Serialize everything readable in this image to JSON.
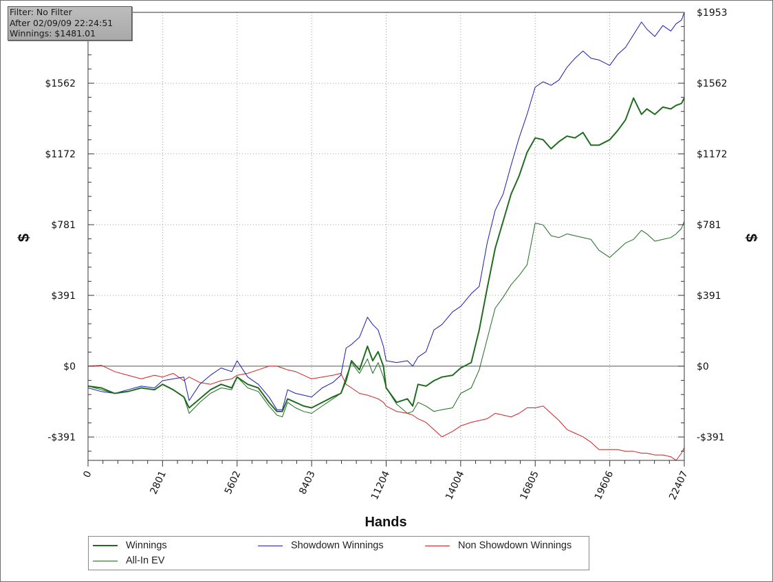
{
  "info": {
    "filter": "Filter: No Filter",
    "after": "After 02/09/09 22:24:51",
    "winnings": "Winnings: $1481.01"
  },
  "chart_data": {
    "type": "line",
    "xlabel": "Hands",
    "ylabel": "$",
    "xlim": [
      0,
      22407
    ],
    "ylim": [
      -520,
      1953
    ],
    "x_ticks": [
      "0",
      "2801",
      "5602",
      "8403",
      "11204",
      "14004",
      "16805",
      "19606",
      "22407"
    ],
    "y_ticks": [
      {
        "value": 1953,
        "label": "$1953"
      },
      {
        "value": 1562,
        "label": "$1562"
      },
      {
        "value": 1172,
        "label": "$1172"
      },
      {
        "value": 781,
        "label": "$781"
      },
      {
        "value": 391,
        "label": "$391"
      },
      {
        "value": 0,
        "label": "$0"
      },
      {
        "value": -391,
        "label": "-$391"
      }
    ],
    "grid": true,
    "legend_position": "bottom",
    "series": [
      {
        "name": "Winnings",
        "color": "#1f6b1f",
        "width": 2,
        "x": [
          0,
          500,
          1000,
          1500,
          2000,
          2500,
          2801,
          3200,
          3600,
          3800,
          4200,
          4600,
          5000,
          5400,
          5602,
          6000,
          6400,
          6800,
          7100,
          7300,
          7500,
          7800,
          8100,
          8403,
          8800,
          9200,
          9500,
          9700,
          9900,
          10200,
          10500,
          10700,
          10900,
          11100,
          11204,
          11600,
          12000,
          12200,
          12400,
          12700,
          13000,
          13300,
          13700,
          14004,
          14400,
          14700,
          15000,
          15300,
          15600,
          15900,
          16200,
          16500,
          16805,
          17100,
          17400,
          17700,
          18000,
          18300,
          18600,
          18900,
          19200,
          19606,
          19900,
          20200,
          20500,
          20800,
          21000,
          21300,
          21600,
          21900,
          22100,
          22300,
          22407
        ],
        "y": [
          -110,
          -120,
          -150,
          -140,
          -120,
          -130,
          -100,
          -130,
          -170,
          -230,
          -180,
          -130,
          -100,
          -120,
          -60,
          -100,
          -120,
          -200,
          -250,
          -250,
          -180,
          -200,
          -220,
          -230,
          -200,
          -170,
          -150,
          -80,
          30,
          -20,
          110,
          30,
          80,
          0,
          -120,
          -200,
          -180,
          -220,
          -100,
          -110,
          -80,
          -60,
          -50,
          -10,
          20,
          200,
          430,
          650,
          800,
          950,
          1050,
          1180,
          1260,
          1250,
          1200,
          1240,
          1270,
          1260,
          1290,
          1220,
          1220,
          1250,
          1300,
          1360,
          1480,
          1390,
          1420,
          1390,
          1430,
          1420,
          1440,
          1450,
          1481
        ]
      },
      {
        "name": "Showdown Winnings",
        "color": "#1a1ab4",
        "width": 1,
        "x": [
          0,
          500,
          1000,
          1500,
          2000,
          2500,
          2801,
          3200,
          3600,
          3800,
          4200,
          4600,
          5000,
          5400,
          5602,
          6000,
          6400,
          6800,
          7100,
          7300,
          7500,
          7800,
          8100,
          8403,
          8800,
          9200,
          9500,
          9700,
          9900,
          10200,
          10500,
          10700,
          10900,
          11100,
          11204,
          11600,
          12000,
          12200,
          12400,
          12700,
          13000,
          13300,
          13700,
          14004,
          14400,
          14700,
          15000,
          15300,
          15600,
          15900,
          16200,
          16500,
          16805,
          17100,
          17400,
          17700,
          18000,
          18300,
          18600,
          18900,
          19200,
          19606,
          19900,
          20200,
          20500,
          20800,
          21000,
          21300,
          21600,
          21900,
          22100,
          22300,
          22407
        ],
        "y": [
          -120,
          -140,
          -150,
          -130,
          -110,
          -120,
          -80,
          -70,
          -60,
          -190,
          -100,
          -50,
          -10,
          -30,
          30,
          -60,
          -100,
          -170,
          -240,
          -240,
          -130,
          -150,
          -160,
          -170,
          -120,
          -90,
          -50,
          100,
          120,
          160,
          270,
          230,
          200,
          110,
          30,
          20,
          30,
          0,
          50,
          80,
          200,
          230,
          300,
          330,
          400,
          440,
          680,
          860,
          950,
          1110,
          1260,
          1390,
          1540,
          1570,
          1550,
          1580,
          1650,
          1700,
          1740,
          1700,
          1690,
          1660,
          1720,
          1760,
          1830,
          1900,
          1860,
          1820,
          1880,
          1850,
          1890,
          1910,
          1953
        ]
      },
      {
        "name": "Non Showdown Winnings",
        "color": "#d42020",
        "width": 1,
        "x": [
          0,
          500,
          1000,
          1500,
          2000,
          2500,
          2801,
          3200,
          3600,
          3800,
          4200,
          4600,
          5000,
          5400,
          5602,
          6000,
          6400,
          6800,
          7100,
          7300,
          7500,
          7800,
          8100,
          8403,
          8800,
          9200,
          9500,
          9700,
          9900,
          10200,
          10500,
          10700,
          10900,
          11100,
          11204,
          11600,
          12000,
          12200,
          12400,
          12700,
          13000,
          13300,
          13700,
          14004,
          14400,
          14700,
          15000,
          15300,
          15600,
          15900,
          16200,
          16500,
          16805,
          17100,
          17400,
          17700,
          18000,
          18300,
          18600,
          18900,
          19200,
          19606,
          19900,
          20200,
          20500,
          20800,
          21000,
          21300,
          21600,
          21900,
          22100,
          22300,
          22407
        ],
        "y": [
          0,
          5,
          -30,
          -50,
          -70,
          -50,
          -60,
          -40,
          -80,
          -60,
          -90,
          -100,
          -80,
          -70,
          -50,
          -40,
          -20,
          0,
          0,
          -10,
          -20,
          -30,
          -50,
          -70,
          -60,
          -50,
          -40,
          -100,
          -120,
          -150,
          -160,
          -170,
          -180,
          -200,
          -220,
          -250,
          -260,
          -270,
          -290,
          -310,
          -350,
          -390,
          -360,
          -330,
          -310,
          -300,
          -290,
          -260,
          -270,
          -280,
          -260,
          -230,
          -230,
          -220,
          -260,
          -300,
          -350,
          -370,
          -390,
          -420,
          -460,
          -460,
          -460,
          -470,
          -470,
          -480,
          -480,
          -490,
          -490,
          -500,
          -520,
          -480,
          -450
        ]
      },
      {
        "name": "All-In EV",
        "color": "#1f6b1f",
        "width": 1,
        "x": [
          0,
          500,
          1000,
          1500,
          2000,
          2500,
          2801,
          3200,
          3600,
          3800,
          4200,
          4600,
          5000,
          5400,
          5602,
          6000,
          6400,
          6800,
          7100,
          7300,
          7500,
          7800,
          8100,
          8403,
          8800,
          9200,
          9500,
          9700,
          9900,
          10200,
          10500,
          10700,
          10900,
          11100,
          11204,
          11600,
          12000,
          12200,
          12400,
          12700,
          13000,
          13300,
          13700,
          14004,
          14400,
          14700,
          15000,
          15300,
          15600,
          15900,
          16200,
          16500,
          16805,
          17100,
          17400,
          17700,
          18000,
          18300,
          18600,
          18900,
          19200,
          19606,
          19900,
          20200,
          20500,
          20800,
          21000,
          21300,
          21600,
          21900,
          22100,
          22300,
          22407
        ],
        "y": [
          -110,
          -130,
          -150,
          -140,
          -120,
          -130,
          -100,
          -130,
          -170,
          -260,
          -200,
          -150,
          -120,
          -130,
          -60,
          -120,
          -140,
          -220,
          -270,
          -280,
          -200,
          -230,
          -250,
          -260,
          -220,
          -180,
          -150,
          -60,
          20,
          -40,
          40,
          -40,
          20,
          -60,
          -120,
          -210,
          -260,
          -250,
          -200,
          -220,
          -250,
          -240,
          -230,
          -150,
          -120,
          -20,
          150,
          320,
          380,
          450,
          500,
          560,
          790,
          780,
          720,
          710,
          730,
          720,
          710,
          700,
          640,
          600,
          640,
          680,
          700,
          750,
          730,
          690,
          700,
          710,
          730,
          760,
          800
        ]
      }
    ]
  }
}
